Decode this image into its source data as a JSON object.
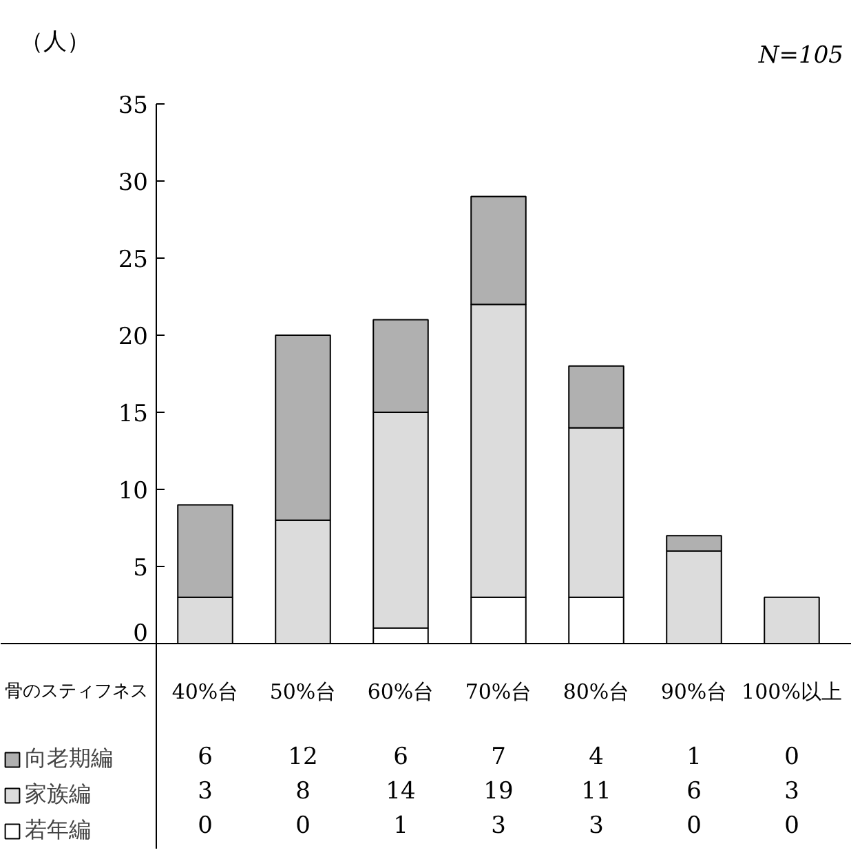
{
  "chart_data": {
    "type": "bar",
    "stacked": true,
    "ylabel": "（人）",
    "xlabel": "骨のスティフネス",
    "categories": [
      "40%台",
      "50%台",
      "60%台",
      "70%台",
      "80%台",
      "90%台",
      "100%以上"
    ],
    "series": [
      {
        "name": "若年編",
        "color": "#ffffff",
        "values": [
          0,
          0,
          1,
          3,
          3,
          0,
          0
        ]
      },
      {
        "name": "家族編",
        "color": "#dcdcdc",
        "values": [
          3,
          8,
          14,
          19,
          11,
          6,
          3
        ]
      },
      {
        "name": "向老期編",
        "color": "#b0b0b0",
        "values": [
          6,
          12,
          6,
          7,
          4,
          1,
          0
        ]
      }
    ],
    "ylim": [
      0,
      35
    ],
    "yticks": [
      0,
      5,
      10,
      15,
      20,
      25,
      30,
      35
    ],
    "grid": false,
    "legend": "bottom left",
    "data_labels": true,
    "annotations": [
      "N=105"
    ]
  }
}
